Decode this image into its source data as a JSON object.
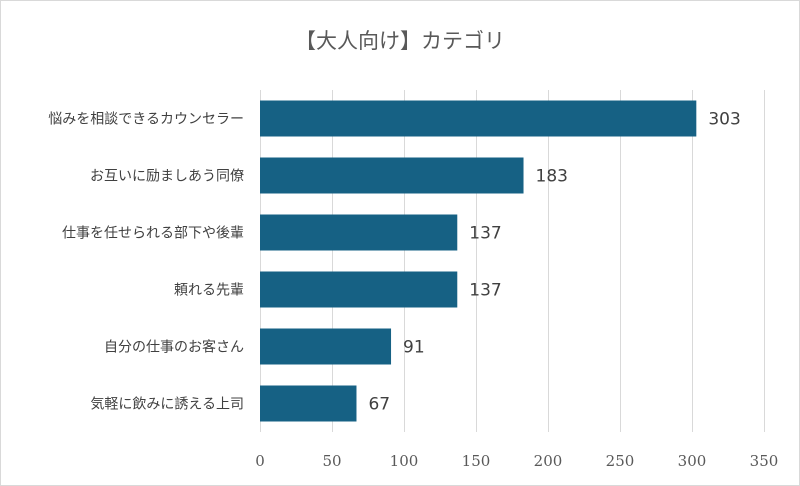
{
  "chart_data": {
    "type": "bar",
    "orientation": "horizontal",
    "title": "【大人向け】カテゴリ",
    "categories": [
      "悩みを相談できるカウンセラー",
      "お互いに励ましあう同僚",
      "仕事を任せられる部下や後輩",
      "頼れる先輩",
      "自分の仕事のお客さん",
      "気軽に飲みに誘える上司"
    ],
    "values": [
      303,
      183,
      137,
      137,
      91,
      67
    ],
    "xlim": [
      0,
      350
    ],
    "xticks": [
      "0",
      "50",
      "100",
      "150",
      "200",
      "250",
      "300",
      "350"
    ],
    "xlabel": "",
    "ylabel": "",
    "grid": true,
    "legend": "none",
    "colors": {
      "bar": "#166184"
    }
  }
}
